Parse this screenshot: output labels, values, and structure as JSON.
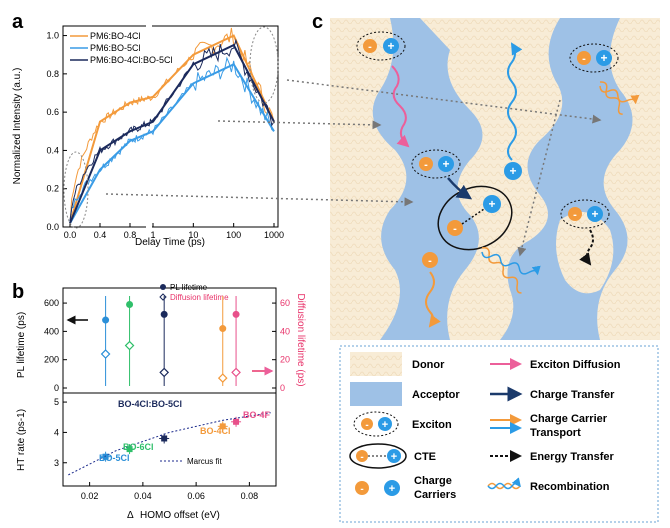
{
  "panel_labels": {
    "a": "a",
    "b": "b",
    "c": "c"
  },
  "panel_a": {
    "ylabel": "Normalized Intensity (a.u.)",
    "xlabel": "Delay Time (ps)",
    "yticks": [
      "0.0",
      "0.2",
      "0.4",
      "0.6",
      "0.8",
      "1.0"
    ],
    "xticks_lin": [
      "0.0",
      "0.4",
      "0.8"
    ],
    "xticks_log": [
      "1",
      "10",
      "100",
      "1000"
    ],
    "legend": [
      "PM6:BO-4Cl",
      "PM6:BO-5Cl",
      "PM6:BO-4Cl:BO-5Cl"
    ],
    "colors": [
      "#f39a3b",
      "#3a9ce6",
      "#1b2a5c"
    ]
  },
  "panel_b": {
    "top_ylabel_left": "PL lifetime (ps)",
    "top_ylabel_right": "Diffusion lifetime (ps)",
    "top_yticks_left": [
      "0",
      "200",
      "400",
      "600"
    ],
    "top_yticks_right": [
      "0",
      "20",
      "40",
      "60"
    ],
    "legend_pl": "PL lifetime",
    "legend_diff": "Diffusion lifetime",
    "bottom_ylabel": "HT rate (ps-1)",
    "bottom_yticks": [
      "3",
      "4",
      "5"
    ],
    "xticks": [
      "0.02",
      "0.04",
      "0.06",
      "0.08"
    ],
    "xlabel": "HOMO offset (eV)",
    "delta_symbol": "Δ",
    "marcus_label": "Marcus fit",
    "labels": {
      "bo5cl": "BO-5Cl",
      "bo6cl": "BO-6Cl",
      "bo4cl_bo5cl": "BO-4Cl:BO-5Cl",
      "bo4cl": "BO-4Cl",
      "bo4f": "BO-4F"
    },
    "colors": {
      "bo5cl": "#2b8fd8",
      "bo6cl": "#2fbf6a",
      "bo4cl_bo5cl": "#1b2a5c",
      "bo4cl": "#f39a3b",
      "bo4f": "#e8508a",
      "diff": "#e8336a"
    }
  },
  "chart_data": [
    {
      "type": "line",
      "title": "",
      "xlabel": "Delay Time (ps)",
      "ylabel": "Normalized Intensity (a.u.)",
      "ylim": [
        0,
        1.05
      ],
      "x": [
        0.0,
        0.4,
        0.8,
        1,
        10,
        100,
        1000
      ],
      "series": [
        {
          "name": "PM6:BO-4Cl",
          "values": [
            0.02,
            0.55,
            0.65,
            0.68,
            0.9,
            1.0,
            0.55
          ]
        },
        {
          "name": "PM6:BO-5Cl",
          "values": [
            0.02,
            0.3,
            0.45,
            0.5,
            0.75,
            0.85,
            0.5
          ]
        },
        {
          "name": "PM6:BO-4Cl:BO-5Cl",
          "values": [
            0.02,
            0.4,
            0.5,
            0.55,
            0.85,
            0.95,
            0.55
          ]
        }
      ]
    },
    {
      "type": "scatter",
      "title": "",
      "xlabel": "HOMO offset (eV)",
      "ylabel": "PL lifetime (ps)",
      "ylim_left": [
        0,
        650
      ],
      "ylim_right": [
        0,
        65
      ],
      "series": [
        {
          "name": "PL lifetime",
          "points": [
            {
              "label": "BO-5Cl",
              "x": 0.026,
              "y": 480
            },
            {
              "label": "BO-6Cl",
              "x": 0.035,
              "y": 590
            },
            {
              "label": "BO-4Cl:BO-5Cl",
              "x": 0.048,
              "y": 520
            },
            {
              "label": "BO-4Cl",
              "x": 0.07,
              "y": 420
            },
            {
              "label": "BO-4F",
              "x": 0.075,
              "y": 520
            }
          ]
        },
        {
          "name": "Diffusion lifetime",
          "points": [
            {
              "label": "BO-5Cl",
              "x": 0.026,
              "y": 24
            },
            {
              "label": "BO-6Cl",
              "x": 0.035,
              "y": 30
            },
            {
              "label": "BO-4Cl:BO-5Cl",
              "x": 0.048,
              "y": 11
            },
            {
              "label": "BO-4Cl",
              "x": 0.07,
              "y": 7
            },
            {
              "label": "BO-4F",
              "x": 0.075,
              "y": 11
            }
          ]
        }
      ]
    },
    {
      "type": "scatter",
      "title": "",
      "xlabel": "HOMO offset (eV)",
      "ylabel": "HT rate (ps-1)",
      "ylim": [
        2.3,
        5.2
      ],
      "xlim": [
        0.01,
        0.09
      ],
      "series": [
        {
          "name": "HT rate",
          "points": [
            {
              "label": "BO-5Cl",
              "x": 0.026,
              "y": 3.2
            },
            {
              "label": "BO-6Cl",
              "x": 0.035,
              "y": 3.45
            },
            {
              "label": "BO-4Cl:BO-5Cl",
              "x": 0.048,
              "y": 3.8
            },
            {
              "label": "BO-4Cl",
              "x": 0.07,
              "y": 4.2
            },
            {
              "label": "BO-4F",
              "x": 0.075,
              "y": 4.35
            }
          ]
        },
        {
          "name": "Marcus fit",
          "points": [
            {
              "x": 0.012,
              "y": 2.6
            },
            {
              "x": 0.03,
              "y": 3.4
            },
            {
              "x": 0.05,
              "y": 4.0
            },
            {
              "x": 0.07,
              "y": 4.4
            },
            {
              "x": 0.088,
              "y": 4.65
            }
          ]
        }
      ]
    }
  ],
  "panel_c": {
    "legend": {
      "donor": "Donor",
      "acceptor": "Acceptor",
      "exciton": "Exciton",
      "cte": "CTE",
      "charge_carriers": "Charge\nCarriers",
      "exciton_diffusion": "Exciton Diffusion",
      "charge_transfer": "Charge Transfer",
      "charge_carrier_transport": "Charge Carrier\nTransport",
      "energy_transfer": "Energy Transfer",
      "recombination": "Recombination"
    },
    "minus": "-",
    "plus": "+",
    "colors": {
      "donor": "#f8ecd6",
      "acceptor": "#9ec1e6",
      "diffusion": "#ec5f9a",
      "transfer": "#1b3a6b",
      "transport_orange": "#f39a3b",
      "transport_blue": "#2b9be6",
      "hole": "#2b9be6",
      "electron": "#f39a3b"
    }
  }
}
